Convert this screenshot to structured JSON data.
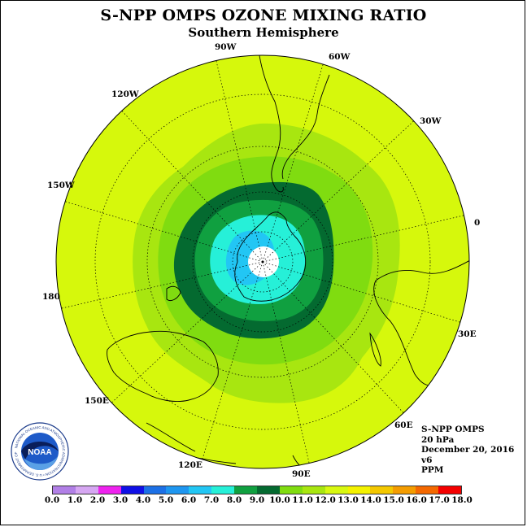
{
  "title": "S-NPP OMPS OZONE MIXING RATIO",
  "subtitle": "Southern Hemisphere",
  "longitude_labels": {
    "lon_90W": "90W",
    "lon_60W": "60W",
    "lon_30W": "30W",
    "lon_0": "0",
    "lon_30E": "30E",
    "lon_60E": "60E",
    "lon_90E": "90E",
    "lon_120E": "120E",
    "lon_150E": "150E",
    "lon_180": "180",
    "lon_150W": "150W",
    "lon_120W": "120W"
  },
  "info": {
    "instrument": "S-NPP OMPS",
    "level": "20 hPa",
    "date": "December 20, 2016",
    "version": "v6",
    "units": "PPM"
  },
  "logo": {
    "text": "NOAA",
    "ring_text": "NATIONAL OCEANIC AND ATMOSPHERIC ADMINISTRATION",
    "ring_text_bottom": "U.S. DEPARTMENT OF COMMERCE"
  },
  "colorbar": {
    "labels": [
      "0.0",
      "1.0",
      "2.0",
      "3.0",
      "4.0",
      "5.0",
      "6.0",
      "7.0",
      "8.0",
      "9.0",
      "10.0",
      "11.0",
      "12.0",
      "13.0",
      "14.0",
      "15.0",
      "16.0",
      "17.0",
      "18.0"
    ],
    "colors": [
      "#b17fe6",
      "#d6a7f2",
      "#ee22ee",
      "#1010e6",
      "#1c70e6",
      "#1e96f0",
      "#22c6f4",
      "#26f0d8",
      "#10a040",
      "#046a30",
      "#80dc10",
      "#a8e610",
      "#d8f810",
      "#f4f200",
      "#f4c800",
      "#f49c00",
      "#f46800",
      "#f40000",
      "#8c5030"
    ]
  },
  "map_data": {
    "projection": "south polar stereographic",
    "field": "ozone mixing ratio (PPM)",
    "contour_fills": {
      "outer": "#d6f80c",
      "band_11_12": "#a8e610",
      "band_10_11": "#80dc10",
      "band_9_10": "#046a30",
      "band_8_9": "#10a040",
      "band_7_8": "#26f0d8",
      "band_6_7": "#22c6f4",
      "missing_pole": "#ffffff"
    }
  }
}
